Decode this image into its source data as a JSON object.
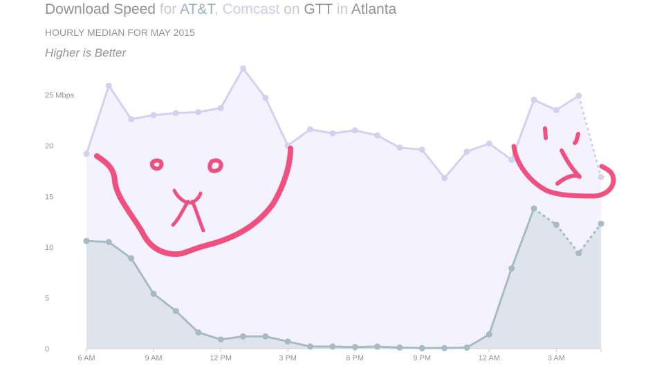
{
  "header": {
    "title_parts": [
      "Download Speed",
      " for ",
      "AT&T",
      ", ",
      "Comcast",
      " on ",
      "GTT",
      " in ",
      "Atlanta"
    ],
    "subtitle": "HOURLY MEDIAN FOR MAY 2015",
    "note": "Higher is Better"
  },
  "chart_data": {
    "type": "area",
    "title": "Download Speed for AT&T, Comcast on GTT in Atlanta",
    "subtitle": "HOURLY MEDIAN FOR MAY 2015",
    "note": "Higher is Better",
    "x": [
      "6 AM",
      "7 AM",
      "8 AM",
      "9 AM",
      "10 AM",
      "11 AM",
      "12 PM",
      "1 PM",
      "2 PM",
      "3 PM",
      "4 PM",
      "5 PM",
      "6 PM",
      "7 PM",
      "8 PM",
      "9 PM",
      "10 PM",
      "11 PM",
      "12 AM",
      "1 AM",
      "2 AM",
      "3 AM",
      "4 AM",
      "5 AM"
    ],
    "x_tick_labels": [
      "6 AM",
      "9 AM",
      "12 PM",
      "3 PM",
      "6 PM",
      "9 PM",
      "12 AM",
      "3 AM"
    ],
    "x_tick_index": [
      0,
      3,
      6,
      9,
      12,
      15,
      18,
      21
    ],
    "y_tick_values": [
      0,
      5,
      10,
      15,
      20,
      25
    ],
    "y_tick_labels": [
      "0",
      "5",
      "10",
      "15",
      "20",
      "25 Mbps"
    ],
    "ylim": [
      0,
      25.5
    ],
    "grid": false,
    "series": [
      {
        "name": "Comcast",
        "color": "#d6d0f0",
        "fill": "#f4f2fc",
        "values": [
          19.2,
          25.9,
          22.6,
          23.0,
          23.2,
          23.3,
          23.7,
          27.6,
          24.7,
          20.0,
          21.6,
          21.2,
          21.5,
          21.0,
          19.8,
          19.6,
          16.8,
          19.4,
          20.2,
          18.6,
          24.5,
          23.5,
          24.9,
          16.9
        ],
        "dashed_from_index": 22
      },
      {
        "name": "AT&T",
        "color": "#a6bbc4",
        "fill": "#dfe4ec",
        "values": [
          10.6,
          10.5,
          8.9,
          5.4,
          3.7,
          1.6,
          0.9,
          1.2,
          1.2,
          0.7,
          0.2,
          0.2,
          0.15,
          0.2,
          0.1,
          0.05,
          0.05,
          0.1,
          1.4,
          7.9,
          13.8,
          12.2,
          9.4,
          12.3
        ],
        "dashed_from_index": 20
      }
    ],
    "annotations": [
      {
        "type": "freehand-cat-face",
        "color": "#f0346a"
      },
      {
        "type": "freehand-cat-face",
        "color": "#f0346a"
      }
    ]
  }
}
